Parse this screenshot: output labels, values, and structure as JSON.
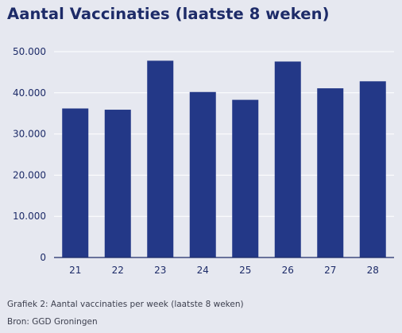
{
  "colors": {
    "bar": "#233887",
    "text": "#1d2b68",
    "grid": "#ffffff",
    "axis": "#1d2b68",
    "background": "#e6e8f0"
  },
  "chart_data": {
    "type": "bar",
    "title": "Aantal Vaccinaties (laatste 8 weken)",
    "categories": [
      "21",
      "22",
      "23",
      "24",
      "25",
      "26",
      "27",
      "28"
    ],
    "values": [
      36200,
      35900,
      47800,
      40200,
      38300,
      47600,
      41100,
      42800
    ],
    "ylim": [
      0,
      50000
    ],
    "yticks": [
      0,
      10000,
      20000,
      30000,
      40000,
      50000
    ],
    "ytick_labels": [
      "0",
      "10.000",
      "20.000",
      "30.000",
      "40.000",
      "50.000"
    ],
    "grid": true,
    "xlabel": "",
    "ylabel": "",
    "captions": [
      "Grafiek 2: Aantal vaccinaties per week (laatste 8 weken)",
      "Bron: GGD Groningen"
    ]
  }
}
